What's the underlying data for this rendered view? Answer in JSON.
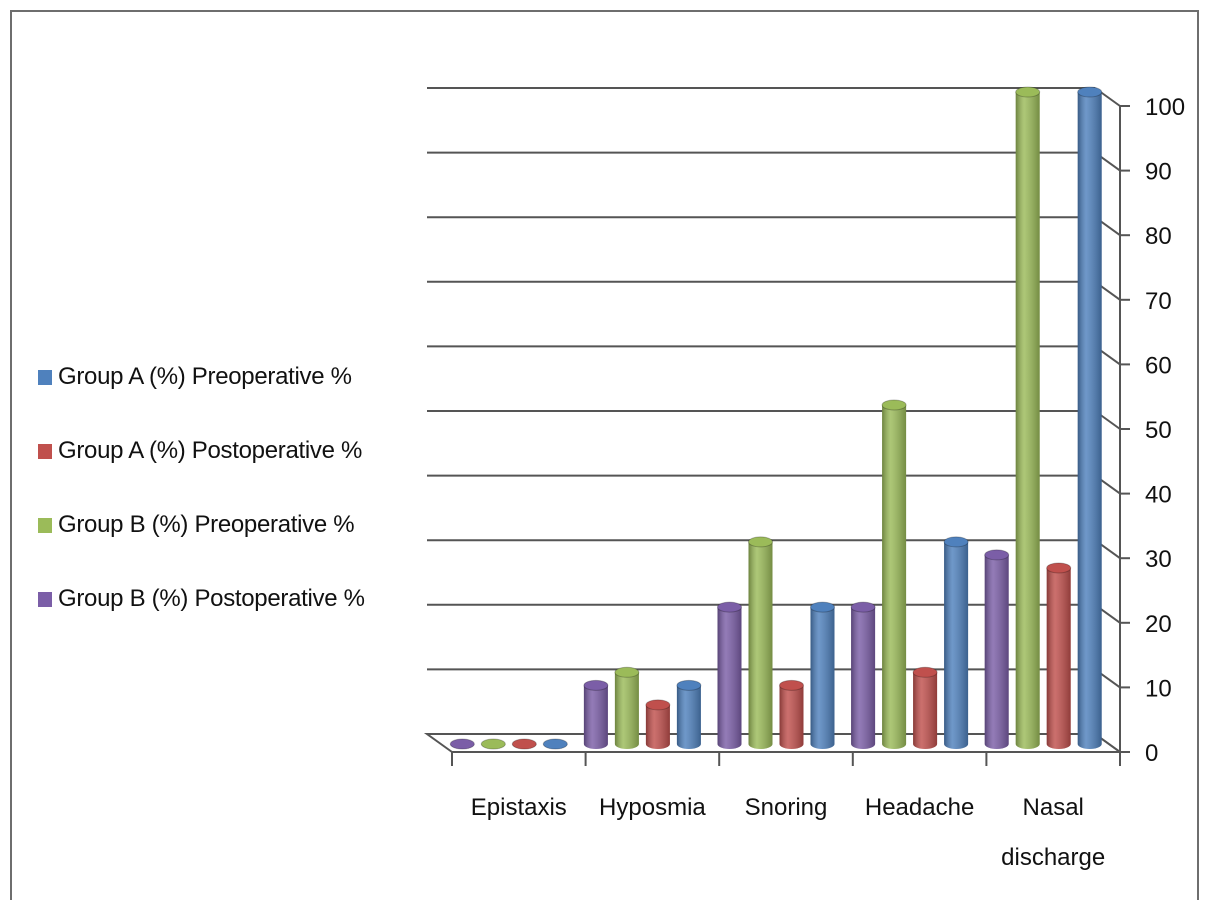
{
  "chart_data": {
    "type": "bar",
    "categories": [
      "Epistaxis",
      "Hyposmia",
      "Snoring",
      "Headache",
      "Nasal discharge"
    ],
    "series": [
      {
        "name": "Group B (%) Postoperative %",
        "color": "#7b5ea7",
        "values": [
          0,
          9,
          21,
          21,
          29
        ]
      },
      {
        "name": "Group B (%) Preoperative %",
        "color": "#9bbb59",
        "values": [
          0,
          11,
          31,
          52,
          100
        ]
      },
      {
        "name": "Group A (%) Postoperative %",
        "color": "#c0504d",
        "values": [
          0,
          6,
          9,
          11,
          27
        ]
      },
      {
        "name": "Group A (%) Preoperative %",
        "color": "#4f81bd",
        "values": [
          0,
          9,
          21,
          31,
          100
        ]
      }
    ],
    "legend_order": [
      "Group A (%) Preoperative %",
      "Group A (%) Postoperative %",
      "Group B (%) Preoperative %",
      "Group B (%) Postoperative %"
    ],
    "y_ticks": [
      "0",
      "10",
      "20",
      "30",
      "40",
      "50",
      "60",
      "70",
      "80",
      "90",
      "100"
    ],
    "ylim": [
      0,
      100
    ],
    "yaxis_side": "right",
    "grid": true,
    "legend_position": "left",
    "title": "",
    "xlabel": "",
    "ylabel": ""
  }
}
